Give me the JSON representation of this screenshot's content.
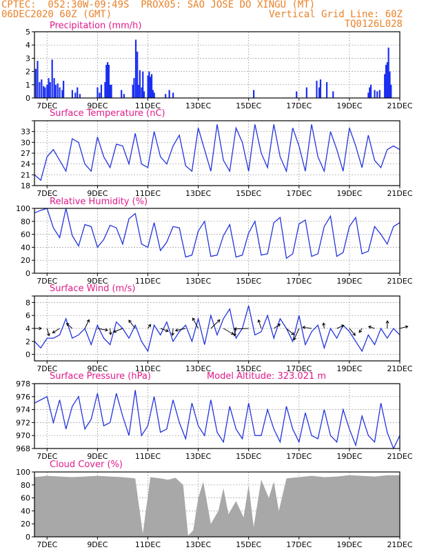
{
  "header": {
    "line1": "CPTEC:  052:30W-09:49S  PROX05: SAO JOSE DO XINGU (MT)",
    "line2": "06DEC2020 60Z (GMT)",
    "grid_note": "Vertical Grid Line: 60Z",
    "code": "TQ0126L028"
  },
  "colors": {
    "header": "#e8822a",
    "title": "#e01a8a",
    "series": "#2233dd",
    "bar": "#1a2ff0",
    "cloud": "#a8a8a8",
    "grid": "#9a9a9a"
  },
  "x_labels": [
    "7DEC",
    "9DEC",
    "11DEC",
    "13DEC",
    "15DEC",
    "17DEC",
    "19DEC",
    "21DEC"
  ],
  "x_domain": {
    "start": "06DEC2020 12Z",
    "end": "21DEC2020 00Z",
    "units": "days"
  },
  "chart_data": [
    {
      "type": "bar",
      "title": "Precipitation (mm/h)",
      "ylim": [
        0,
        5
      ],
      "yticks": [
        0,
        1,
        2,
        3,
        4,
        5
      ],
      "x": [
        0.05,
        0.12,
        0.2,
        0.28,
        0.36,
        0.42,
        0.5,
        0.56,
        0.62,
        0.7,
        0.78,
        0.84,
        0.92,
        1.0,
        1.1,
        1.15,
        1.5,
        1.62,
        1.7,
        1.8,
        2.5,
        2.58,
        2.65,
        2.8,
        2.85,
        2.9,
        2.95,
        3.0,
        3.05,
        3.45,
        3.55,
        3.9,
        3.95,
        4.02,
        4.08,
        4.12,
        4.18,
        4.25,
        4.3,
        4.35,
        4.5,
        4.55,
        4.6,
        4.65,
        4.7,
        4.75,
        5.2,
        5.35,
        5.5,
        8.7,
        10.4,
        10.8,
        11.2,
        11.3,
        11.35,
        11.6,
        11.85,
        13.25,
        13.3,
        13.35,
        13.5,
        13.6,
        13.7,
        13.9,
        13.95,
        14.0,
        14.05,
        14.1,
        14.15
      ],
      "values": [
        2.2,
        2.8,
        1.2,
        1.4,
        0.9,
        0.8,
        1.0,
        1.5,
        1.2,
        2.9,
        1.5,
        1.0,
        1.1,
        0.8,
        0.6,
        1.3,
        0.6,
        0.4,
        0.8,
        0.3,
        0.8,
        0.4,
        1.0,
        1.2,
        2.5,
        2.7,
        2.5,
        1.0,
        1.0,
        0.6,
        0.3,
        1.0,
        1.5,
        4.4,
        3.5,
        1.0,
        2.1,
        0.8,
        2.0,
        0.5,
        1.7,
        2.0,
        1.6,
        1.8,
        0.6,
        0.4,
        0.3,
        0.6,
        0.4,
        0.6,
        0.5,
        0.8,
        1.3,
        0.8,
        1.4,
        1.2,
        0.5,
        0.4,
        0.8,
        1.0,
        0.6,
        0.5,
        0.6,
        1.8,
        2.5,
        2.7,
        3.8,
        2.0,
        1.0
      ]
    },
    {
      "type": "line",
      "title": "Surface Temperature (nC)",
      "ylim": [
        18,
        36
      ],
      "yticks": [
        18,
        21,
        24,
        27,
        30,
        33
      ],
      "x": [
        0,
        0.25,
        0.5,
        0.75,
        1.0,
        1.25,
        1.5,
        1.75,
        2.0,
        2.25,
        2.5,
        2.75,
        3.0,
        3.25,
        3.5,
        3.75,
        4.0,
        4.25,
        4.5,
        4.75,
        5.0,
        5.25,
        5.5,
        5.75,
        6.0,
        6.25,
        6.5,
        6.75,
        7.0,
        7.25,
        7.5,
        7.75,
        8.0,
        8.25,
        8.5,
        8.75,
        9.0,
        9.25,
        9.5,
        9.75,
        10.0,
        10.25,
        10.5,
        10.75,
        11.0,
        11.25,
        11.5,
        11.75,
        12.0,
        12.25,
        12.5,
        12.75,
        13.0,
        13.25,
        13.5,
        13.75,
        14.0,
        14.25,
        14.5
      ],
      "values": [
        21,
        19.5,
        26,
        28,
        25,
        22,
        31,
        30,
        24,
        22,
        31.5,
        26,
        23,
        29.5,
        29,
        24,
        32.5,
        24,
        23,
        33,
        26,
        24,
        29,
        32,
        23.5,
        22,
        34,
        28,
        22,
        35,
        25,
        22,
        34,
        30,
        22,
        35,
        27,
        23,
        35,
        26,
        22,
        34,
        29,
        22,
        35,
        26,
        22,
        33,
        28,
        22,
        34,
        29,
        23,
        32,
        25,
        23,
        28,
        29,
        28
      ]
    },
    {
      "type": "line",
      "title": "Relative Humidity (%)",
      "ylim": [
        0,
        100
      ],
      "yticks": [
        0,
        20,
        40,
        60,
        80,
        100
      ],
      "x": [
        0,
        0.25,
        0.5,
        0.75,
        1.0,
        1.25,
        1.5,
        1.75,
        2.0,
        2.25,
        2.5,
        2.75,
        3.0,
        3.25,
        3.5,
        3.75,
        4.0,
        4.25,
        4.5,
        4.75,
        5.0,
        5.25,
        5.5,
        5.75,
        6.0,
        6.25,
        6.5,
        6.75,
        7.0,
        7.25,
        7.5,
        7.75,
        8.0,
        8.25,
        8.5,
        8.75,
        9.0,
        9.25,
        9.5,
        9.75,
        10.0,
        10.25,
        10.5,
        10.75,
        11.0,
        11.25,
        11.5,
        11.75,
        12.0,
        12.25,
        12.5,
        12.75,
        13.0,
        13.25,
        13.5,
        13.75,
        14.0,
        14.25,
        14.5
      ],
      "values": [
        93,
        97,
        100,
        70,
        55,
        100,
        58,
        42,
        75,
        72,
        40,
        52,
        74,
        70,
        45,
        84,
        92,
        45,
        40,
        78,
        35,
        48,
        72,
        70,
        25,
        28,
        65,
        80,
        26,
        28,
        58,
        75,
        25,
        28,
        62,
        80,
        28,
        30,
        78,
        86,
        23,
        30,
        76,
        82,
        26,
        30,
        72,
        88,
        26,
        32,
        72,
        86,
        30,
        34,
        72,
        60,
        45,
        72,
        78
      ]
    },
    {
      "type": "line",
      "title": "Surface Wind (m/s)",
      "ylim": [
        -1,
        9
      ],
      "yticks": [
        0,
        2,
        4,
        6,
        8
      ],
      "x": [
        0,
        0.25,
        0.5,
        0.75,
        1.0,
        1.25,
        1.5,
        1.75,
        2.0,
        2.25,
        2.5,
        2.75,
        3.0,
        3.25,
        3.5,
        3.75,
        4.0,
        4.25,
        4.5,
        4.75,
        5.0,
        5.25,
        5.5,
        5.75,
        6.0,
        6.25,
        6.5,
        6.75,
        7.0,
        7.25,
        7.5,
        7.75,
        8.0,
        8.25,
        8.5,
        8.75,
        9.0,
        9.25,
        9.5,
        9.75,
        10.0,
        10.25,
        10.5,
        10.75,
        11.0,
        11.25,
        11.5,
        11.75,
        12.0,
        12.25,
        12.5,
        12.75,
        13.0,
        13.25,
        13.5,
        13.75,
        14.0,
        14.25,
        14.5
      ],
      "values": [
        2.0,
        1.0,
        2.5,
        2.5,
        3.0,
        5.5,
        2.5,
        3.0,
        4.0,
        1.5,
        4.5,
        2.5,
        1.5,
        5.0,
        4.0,
        2.5,
        4.5,
        2.0,
        0.5,
        4.5,
        3.0,
        5.0,
        2.0,
        3.5,
        4.5,
        2.0,
        5.5,
        1.5,
        6.0,
        3.0,
        5.5,
        7.0,
        2.5,
        4.0,
        7.5,
        3.0,
        3.5,
        6.0,
        2.5,
        5.5,
        4.0,
        2.0,
        6.0,
        1.5,
        3.5,
        4.5,
        1.0,
        4.0,
        2.5,
        4.5,
        3.5,
        2.0,
        0.5,
        3.0,
        1.5,
        4.0,
        2.5,
        4.0,
        3.0
      ]
    },
    {
      "type": "line",
      "title": "Surface Pressure (hPa)",
      "annotation": "Model Altitude: 323.021 m",
      "ylim": [
        968,
        978
      ],
      "yticks": [
        968,
        970,
        972,
        974,
        976,
        978
      ],
      "x": [
        0,
        0.25,
        0.5,
        0.75,
        1.0,
        1.25,
        1.5,
        1.75,
        2.0,
        2.25,
        2.5,
        2.75,
        3.0,
        3.25,
        3.5,
        3.75,
        4.0,
        4.25,
        4.5,
        4.75,
        5.0,
        5.25,
        5.5,
        5.75,
        6.0,
        6.25,
        6.5,
        6.75,
        7.0,
        7.25,
        7.5,
        7.75,
        8.0,
        8.25,
        8.5,
        8.75,
        9.0,
        9.25,
        9.5,
        9.75,
        10.0,
        10.25,
        10.5,
        10.75,
        11.0,
        11.25,
        11.5,
        11.75,
        12.0,
        12.25,
        12.5,
        12.75,
        13.0,
        13.25,
        13.5,
        13.75,
        14.0,
        14.25,
        14.5
      ],
      "values": [
        975,
        975.5,
        976,
        972,
        975.5,
        971,
        974.5,
        976,
        971,
        972.5,
        976.5,
        971.5,
        972,
        976.5,
        973,
        970,
        977,
        970,
        971.5,
        976,
        970.5,
        971,
        975.5,
        972,
        969.5,
        975,
        971.5,
        970,
        975.5,
        970.5,
        969,
        974.5,
        971,
        969.5,
        975,
        970,
        970,
        974,
        971,
        969,
        974.5,
        971,
        969,
        973.5,
        970,
        969.5,
        974,
        970,
        969,
        974,
        971,
        968.5,
        973,
        970,
        969,
        975,
        970.5,
        968,
        970
      ]
    },
    {
      "type": "area",
      "title": "Cloud Cover (%)",
      "ylim": [
        0,
        100
      ],
      "yticks": [
        0,
        20,
        40,
        60,
        80,
        100
      ],
      "x": [
        0,
        0.5,
        1.0,
        1.5,
        2.0,
        2.5,
        3.0,
        3.5,
        4.0,
        4.3,
        4.6,
        5.0,
        5.3,
        5.6,
        5.9,
        6.1,
        6.3,
        6.5,
        6.7,
        7.0,
        7.3,
        7.5,
        7.7,
        8.0,
        8.3,
        8.5,
        8.7,
        9.0,
        9.3,
        9.5,
        9.7,
        10.0,
        10.5,
        11.0,
        11.5,
        12.0,
        12.5,
        13.0,
        13.5,
        14.0,
        14.5
      ],
      "values": [
        92,
        94,
        93,
        92,
        93,
        94,
        93,
        92,
        90,
        5,
        92,
        90,
        88,
        91,
        80,
        2,
        10,
        60,
        85,
        20,
        40,
        75,
        35,
        55,
        30,
        80,
        15,
        88,
        60,
        85,
        40,
        90,
        92,
        94,
        92,
        93,
        95,
        94,
        93,
        95,
        95
      ]
    }
  ]
}
